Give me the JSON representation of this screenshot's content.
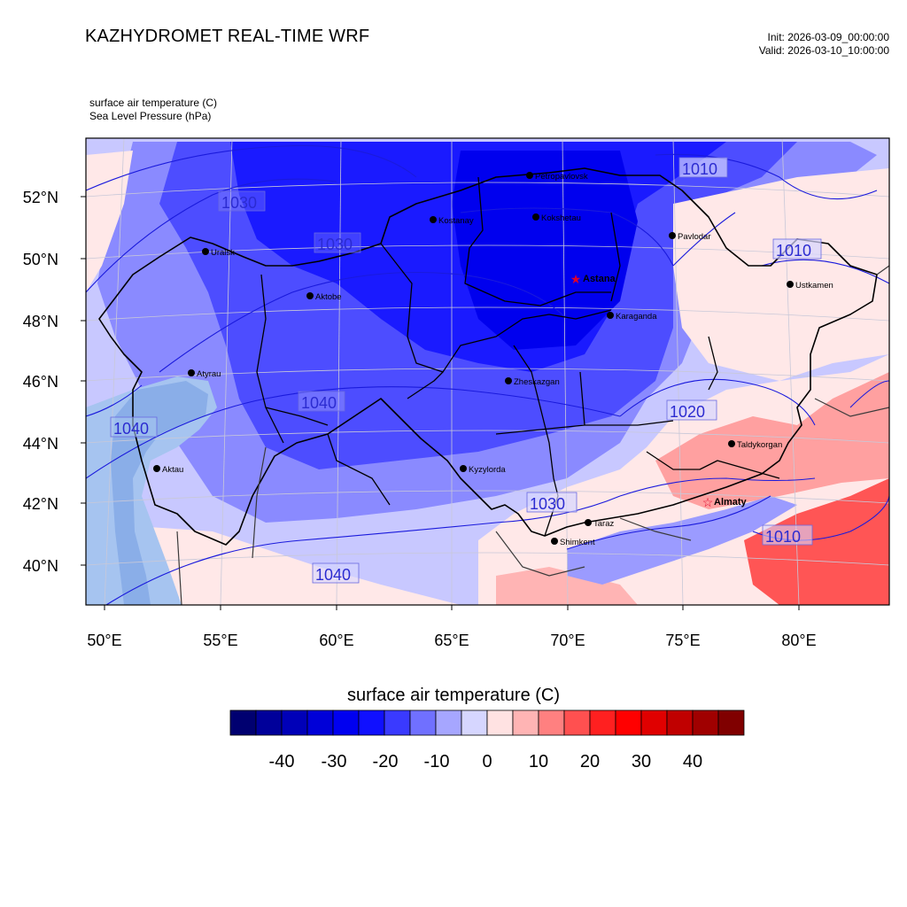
{
  "header": {
    "title": "KAZHYDROMET REAL-TIME WRF",
    "init": "Init: 2026-03-09_00:00:00",
    "valid": "Valid: 2026-03-10_10:00:00",
    "field1": "surface air temperature   (C)",
    "field2": "Sea Level Pressure   (hPa)"
  },
  "map": {
    "lat_labels": [
      "52°N",
      "50°N",
      "48°N",
      "46°N",
      "44°N",
      "42°N",
      "40°N"
    ],
    "lon_labels": [
      "50°E",
      "55°E",
      "60°E",
      "65°E",
      "70°E",
      "75°E",
      "80°E"
    ],
    "isobar_labels": [
      "1030",
      "1030",
      "1040",
      "1040",
      "1040",
      "1030",
      "1020",
      "1010",
      "1010",
      "1010"
    ],
    "cities": [
      {
        "name": "Uralsk",
        "capital": false
      },
      {
        "name": "Aktobe",
        "capital": false
      },
      {
        "name": "Atyrau",
        "capital": false
      },
      {
        "name": "Aktau",
        "capital": false
      },
      {
        "name": "Kostanay",
        "capital": false
      },
      {
        "name": "Petropavlovsk",
        "capital": false
      },
      {
        "name": "Kokshetau",
        "capital": false
      },
      {
        "name": "Astana",
        "capital": true
      },
      {
        "name": "Pavlodar",
        "capital": false
      },
      {
        "name": "Ustkamen",
        "capital": false
      },
      {
        "name": "Karaganda",
        "capital": false
      },
      {
        "name": "Zheskazgan",
        "capital": false
      },
      {
        "name": "Kyzylorda",
        "capital": false
      },
      {
        "name": "Taraz",
        "capital": false
      },
      {
        "name": "Shimkent",
        "capital": false
      },
      {
        "name": "Taldykorgan",
        "capital": false
      },
      {
        "name": "Almaty",
        "capital": true
      }
    ]
  },
  "colorbar": {
    "title": "surface air temperature  (C)",
    "labels": [
      "-40",
      "-30",
      "-20",
      "-10",
      "0",
      "10",
      "20",
      "30",
      "40"
    ],
    "colors": [
      "#000070",
      "#00009a",
      "#0000b8",
      "#0000d8",
      "#0000f0",
      "#1010ff",
      "#3a3aff",
      "#7070ff",
      "#a6a6ff",
      "#d6d6ff",
      "#ffe2e2",
      "#ffb4b4",
      "#ff8080",
      "#ff5050",
      "#ff2020",
      "#ff0000",
      "#e00000",
      "#c00000",
      "#a00000",
      "#800000"
    ]
  },
  "style": {
    "coldest_fill": "#1a1aff",
    "cold_fill": "#4d4dff",
    "cool_fill": "#8a8aff",
    "mild_fill": "#c8c8ff",
    "warm_fill": "#ffe8e8",
    "hot_fill": "#ff5555",
    "caspian_fill": "#a6c4f0",
    "isobar_color": "#1a1adc",
    "border_color": "#000000",
    "capital_color": "#e0002a"
  }
}
